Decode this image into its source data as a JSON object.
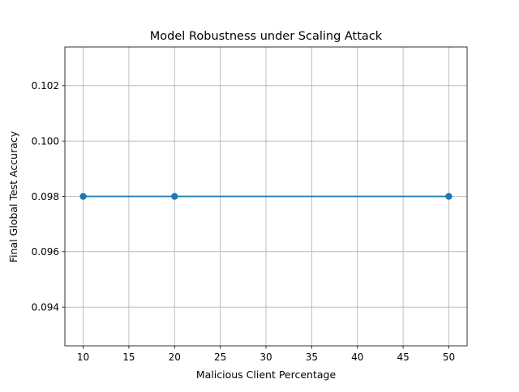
{
  "chart_data": {
    "type": "line",
    "title": "Model Robustness under Scaling Attack",
    "xlabel": "Malicious Client Percentage",
    "ylabel": "Final Global Test Accuracy",
    "x": [
      10,
      20,
      50
    ],
    "series": [
      {
        "values": [
          0.098,
          0.098,
          0.098
        ]
      }
    ],
    "xlim": [
      8,
      52
    ],
    "ylim": [
      0.0926,
      0.1034
    ],
    "xticks": [
      10,
      15,
      20,
      25,
      30,
      35,
      40,
      45,
      50
    ],
    "xtick_labels": [
      "10",
      "15",
      "20",
      "25",
      "30",
      "35",
      "40",
      "45",
      "50"
    ],
    "yticks": [
      0.094,
      0.096,
      0.098,
      0.1,
      0.102
    ],
    "ytick_labels": [
      "0.094",
      "0.096",
      "0.098",
      "0.100",
      "0.102"
    ],
    "grid": true,
    "marker": "circle",
    "colors": {
      "line": "#1f77b4",
      "grid": "#b0b0b0",
      "axes": "#000000"
    }
  }
}
